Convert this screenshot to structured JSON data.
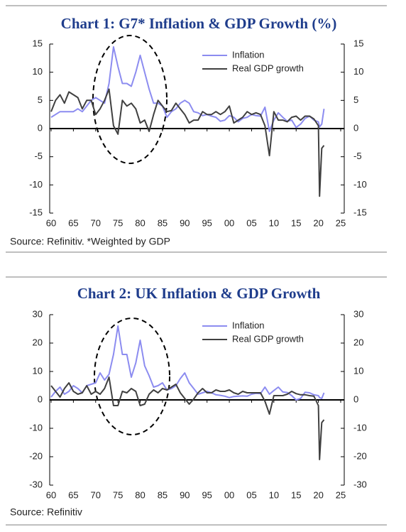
{
  "chart_data": [
    {
      "type": "line",
      "title": "Chart 1: G7* Inflation & GDP Growth (%)",
      "source": "Source: Refinitiv. *Weighted by GDP",
      "x": [
        1960,
        1961,
        1962,
        1963,
        1964,
        1965,
        1966,
        1967,
        1968,
        1969,
        1970,
        1971,
        1972,
        1973,
        1974,
        1975,
        1976,
        1977,
        1978,
        1979,
        1980,
        1981,
        1982,
        1983,
        1984,
        1985,
        1986,
        1987,
        1988,
        1989,
        1990,
        1991,
        1992,
        1993,
        1994,
        1995,
        1996,
        1997,
        1998,
        1999,
        2000,
        2001,
        2002,
        2003,
        2004,
        2005,
        2006,
        2007,
        2008,
        2009,
        2010,
        2011,
        2012,
        2013,
        2014,
        2015,
        2016,
        2017,
        2018,
        2019,
        2020,
        2020.25,
        2020.75,
        2021.25
      ],
      "series": [
        {
          "name": "Inflation",
          "color": "#8c8cf0",
          "values": [
            2,
            2.5,
            3,
            3,
            3,
            3,
            3.5,
            3,
            4,
            5,
            5.5,
            5,
            4.5,
            8,
            14.5,
            11,
            8,
            8,
            7.5,
            10,
            13,
            10,
            7,
            4.5,
            4.5,
            4,
            2,
            3,
            3.5,
            4.5,
            5,
            4.5,
            3,
            2.8,
            2.3,
            2.5,
            2.2,
            2,
            1.3,
            1.5,
            2.3,
            2,
            1.2,
            1.8,
            2,
            2.5,
            2.3,
            2.2,
            3.8,
            -0.5,
            1.5,
            2.8,
            2,
            1.3,
            1.5,
            0.2,
            0.8,
            1.8,
            2.2,
            1.5,
            1.2,
            0.3,
            0.8,
            3.5
          ]
        },
        {
          "name": "Real GDP growth",
          "color": "#404040",
          "values": [
            3,
            5,
            6,
            4.5,
            6.5,
            6,
            5.5,
            3.5,
            5,
            5,
            2.5,
            3.5,
            5,
            7,
            0.5,
            -1,
            5,
            4,
            4.5,
            3.5,
            1,
            1.5,
            -0.5,
            2.5,
            5,
            4,
            3,
            3.2,
            4.5,
            3.5,
            2.5,
            1,
            1.5,
            1.5,
            3,
            2.5,
            2.5,
            3,
            2.5,
            3,
            4,
            1,
            1.5,
            2,
            3,
            2.5,
            2.8,
            2.5,
            0.5,
            -4.8,
            3,
            1.5,
            1.5,
            1.2,
            2,
            2.2,
            1.5,
            2.2,
            2.2,
            1.7,
            0.5,
            -12,
            -3.5,
            -3
          ]
        }
      ],
      "xlim": [
        1960,
        2025
      ],
      "xticks": [
        {
          "value": 1960,
          "label": "60"
        },
        {
          "value": 1965,
          "label": "65"
        },
        {
          "value": 1970,
          "label": "70"
        },
        {
          "value": 1975,
          "label": "75"
        },
        {
          "value": 1980,
          "label": "80"
        },
        {
          "value": 1985,
          "label": "85"
        },
        {
          "value": 1990,
          "label": "90"
        },
        {
          "value": 1995,
          "label": "95"
        },
        {
          "value": 2000,
          "label": "00"
        },
        {
          "value": 2005,
          "label": "05"
        },
        {
          "value": 2010,
          "label": "10"
        },
        {
          "value": 2015,
          "label": "15"
        },
        {
          "value": 2020,
          "label": "20"
        },
        {
          "value": 2025,
          "label": "25"
        }
      ],
      "ylim": [
        -15,
        15
      ],
      "yticks": [
        -15,
        -10,
        -5,
        0,
        5,
        10,
        15
      ]
    },
    {
      "type": "line",
      "title": "Chart 2: UK Inflation & GDP Growth",
      "source": "Source: Refinitiv",
      "x": [
        1960,
        1961,
        1962,
        1963,
        1964,
        1965,
        1966,
        1967,
        1968,
        1969,
        1970,
        1971,
        1972,
        1973,
        1974,
        1975,
        1976,
        1977,
        1978,
        1979,
        1980,
        1981,
        1982,
        1983,
        1984,
        1985,
        1986,
        1987,
        1988,
        1989,
        1990,
        1991,
        1992,
        1993,
        1994,
        1995,
        1996,
        1997,
        1998,
        1999,
        2000,
        2001,
        2002,
        2003,
        2004,
        2005,
        2006,
        2007,
        2008,
        2009,
        2010,
        2011,
        2012,
        2013,
        2014,
        2015,
        2016,
        2017,
        2018,
        2019,
        2020,
        2020.25,
        2020.75,
        2021.25
      ],
      "series": [
        {
          "name": "Inflation",
          "color": "#8c8cf0",
          "values": [
            1,
            3,
            4.5,
            2,
            3,
            5,
            4,
            2.5,
            5,
            5.5,
            6,
            9.5,
            7,
            9,
            16,
            26,
            16,
            16,
            8,
            13,
            21,
            12,
            8.5,
            4.5,
            5,
            6,
            3.5,
            4,
            5,
            7.5,
            9.5,
            6,
            4,
            2,
            2.5,
            3,
            2.5,
            1.8,
            1.6,
            1.3,
            0.8,
            1.2,
            1.3,
            1.4,
            1.3,
            2,
            2.3,
            2.2,
            4.5,
            2,
            3.3,
            4.5,
            2.8,
            2.6,
            1.5,
            0,
            0.5,
            2.7,
            2.5,
            1.8,
            1.5,
            0.8,
            0.5,
            2.5
          ]
        },
        {
          "name": "Real GDP growth",
          "color": "#404040",
          "values": [
            5,
            3,
            1,
            4,
            6,
            3,
            2,
            2.5,
            5,
            2,
            3,
            2,
            4,
            8,
            -2,
            -2,
            3,
            2.5,
            4,
            3,
            -2,
            -1.5,
            2,
            3.5,
            2.5,
            4,
            3.5,
            4.5,
            5.5,
            2.5,
            0.5,
            -1.5,
            0.3,
            2.5,
            4,
            2.5,
            2.5,
            3.5,
            3,
            3,
            3.5,
            2.5,
            2,
            3,
            2.5,
            2.5,
            2.5,
            2.5,
            -0.5,
            -5,
            1.5,
            1.5,
            1.5,
            2,
            3,
            2.2,
            1.8,
            1.8,
            1.5,
            1.3,
            -2,
            -21,
            -8,
            -7
          ]
        }
      ],
      "xlim": [
        1960,
        2025
      ],
      "xticks": [
        {
          "value": 1960,
          "label": "60"
        },
        {
          "value": 1965,
          "label": "65"
        },
        {
          "value": 1970,
          "label": "70"
        },
        {
          "value": 1975,
          "label": "75"
        },
        {
          "value": 1980,
          "label": "80"
        },
        {
          "value": 1985,
          "label": "85"
        },
        {
          "value": 1990,
          "label": "90"
        },
        {
          "value": 1995,
          "label": "95"
        },
        {
          "value": 2000,
          "label": "00"
        },
        {
          "value": 2005,
          "label": "05"
        },
        {
          "value": 2010,
          "label": "10"
        },
        {
          "value": 2015,
          "label": "15"
        },
        {
          "value": 2020,
          "label": "20"
        },
        {
          "value": 2025,
          "label": "25"
        }
      ],
      "ylim": [
        -30,
        30
      ],
      "yticks": [
        -30,
        -20,
        -10,
        0,
        10,
        20,
        30
      ]
    }
  ]
}
